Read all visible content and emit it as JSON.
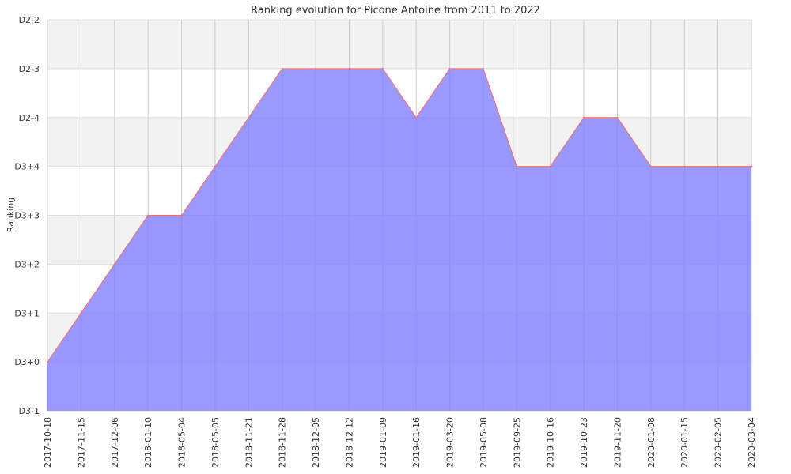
{
  "chart_data": {
    "type": "area",
    "title": "Ranking evolution for Picone Antoine from 2011 to 2022",
    "xlabel": "",
    "ylabel": "Ranking",
    "y_categories": [
      "D3-1",
      "D3+0",
      "D3+1",
      "D3+2",
      "D3+3",
      "D3+4",
      "D2-4",
      "D2-3",
      "D2-2"
    ],
    "x": [
      "2017-10-18",
      "2017-11-15",
      "2017-12-06",
      "2018-01-10",
      "2018-05-04",
      "2018-05-05",
      "2018-11-21",
      "2018-11-28",
      "2018-12-05",
      "2018-12-12",
      "2019-01-09",
      "2019-01-16",
      "2019-03-20",
      "2019-05-08",
      "2019-09-25",
      "2019-10-16",
      "2019-10-23",
      "2019-11-20",
      "2020-01-08",
      "2020-01-15",
      "2020-02-05",
      "2020-03-04"
    ],
    "series": [
      {
        "values": [
          "D3+0",
          "D3+1",
          "D3+2",
          "D3+3",
          "D3+3",
          "D3+4",
          "D2-4",
          "D2-3",
          "D2-3",
          "D2-3",
          "D2-3",
          "D2-4",
          "D2-3",
          "D2-3",
          "D3+4",
          "D3+4",
          "D2-4",
          "D2-4",
          "D3+4",
          "D3+4",
          "D3+4",
          "D3+4"
        ]
      }
    ],
    "fill_color": "#8080ff",
    "line_color": "#ff6b6b",
    "grid": true
  }
}
